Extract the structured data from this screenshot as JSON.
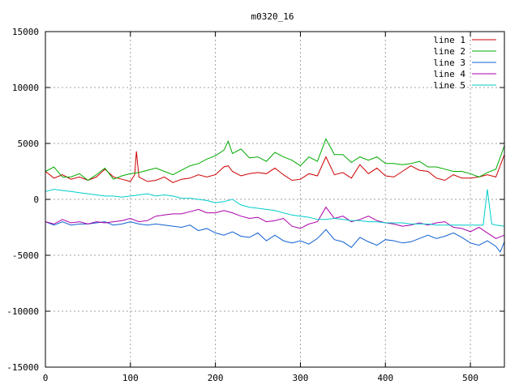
{
  "chart_data": {
    "type": "line",
    "title": "m0320_16",
    "xlabel": "",
    "ylabel": "",
    "xlim": [
      0,
      540
    ],
    "ylim": [
      -15000,
      15000
    ],
    "xticks": [
      0,
      100,
      200,
      300,
      400,
      500
    ],
    "yticks": [
      -15000,
      -10000,
      -5000,
      0,
      5000,
      10000,
      15000
    ],
    "grid": true,
    "legend_position": "top-right",
    "series": [
      {
        "name": "line 1",
        "color": "#cc0000",
        "x": [
          0,
          10,
          20,
          30,
          40,
          50,
          60,
          70,
          80,
          90,
          100,
          105,
          107,
          110,
          120,
          130,
          140,
          150,
          160,
          170,
          180,
          190,
          200,
          210,
          215,
          220,
          230,
          240,
          250,
          260,
          270,
          280,
          290,
          300,
          310,
          320,
          330,
          340,
          350,
          360,
          370,
          380,
          390,
          400,
          410,
          420,
          430,
          440,
          450,
          460,
          470,
          480,
          490,
          500,
          510,
          520,
          530,
          540
        ],
        "values": [
          2500,
          1900,
          2200,
          1800,
          2000,
          1700,
          2000,
          2700,
          2000,
          1800,
          1600,
          2200,
          4300,
          2000,
          1600,
          1700,
          2000,
          1500,
          1800,
          1900,
          2200,
          2000,
          2200,
          2900,
          3000,
          2500,
          2100,
          2300,
          2400,
          2300,
          2800,
          2200,
          1700,
          1800,
          2300,
          2100,
          3800,
          2200,
          2400,
          1900,
          3100,
          2300,
          2800,
          2100,
          2000,
          2500,
          3000,
          2600,
          2500,
          1900,
          1700,
          2200,
          1900,
          1900,
          2000,
          2200,
          2000,
          4000
        ]
      },
      {
        "name": "line 2",
        "color": "#00aa00",
        "x": [
          0,
          10,
          20,
          30,
          40,
          50,
          60,
          70,
          80,
          90,
          100,
          110,
          120,
          130,
          140,
          150,
          160,
          170,
          180,
          190,
          200,
          210,
          215,
          220,
          230,
          240,
          250,
          260,
          270,
          280,
          290,
          300,
          310,
          320,
          330,
          340,
          350,
          360,
          370,
          380,
          390,
          400,
          410,
          420,
          430,
          440,
          450,
          460,
          470,
          480,
          490,
          500,
          510,
          520,
          530,
          540
        ],
        "values": [
          2500,
          2900,
          2000,
          2000,
          2300,
          1700,
          2200,
          2800,
          1800,
          2100,
          2300,
          2400,
          2600,
          2800,
          2500,
          2200,
          2600,
          3000,
          3200,
          3600,
          3900,
          4400,
          5200,
          4100,
          4500,
          3700,
          3800,
          3400,
          4200,
          3800,
          3500,
          3000,
          3800,
          3400,
          5400,
          4000,
          4000,
          3300,
          3800,
          3500,
          3800,
          3200,
          3200,
          3100,
          3200,
          3400,
          2900,
          2900,
          2700,
          2500,
          2500,
          2300,
          2000,
          2400,
          2700,
          4800
        ]
      },
      {
        "name": "line 3",
        "color": "#1060d0",
        "x": [
          0,
          10,
          20,
          30,
          40,
          50,
          60,
          70,
          80,
          90,
          100,
          110,
          120,
          130,
          140,
          150,
          160,
          170,
          180,
          190,
          200,
          210,
          220,
          230,
          240,
          250,
          260,
          270,
          280,
          290,
          300,
          310,
          320,
          330,
          340,
          350,
          360,
          370,
          380,
          390,
          400,
          410,
          420,
          430,
          440,
          450,
          460,
          470,
          480,
          490,
          500,
          510,
          520,
          530,
          535,
          540
        ],
        "values": [
          -2000,
          -2300,
          -2000,
          -2300,
          -2200,
          -2200,
          -2100,
          -2000,
          -2300,
          -2200,
          -2000,
          -2200,
          -2300,
          -2200,
          -2300,
          -2400,
          -2500,
          -2300,
          -2800,
          -2600,
          -3000,
          -3200,
          -2900,
          -3300,
          -3400,
          -3000,
          -3700,
          -3200,
          -3700,
          -3900,
          -3700,
          -4000,
          -3500,
          -2700,
          -3600,
          -3800,
          -4300,
          -3400,
          -3800,
          -4100,
          -3600,
          -3700,
          -3900,
          -3800,
          -3500,
          -3200,
          -3500,
          -3300,
          -3000,
          -3400,
          -3900,
          -4100,
          -3700,
          -4200,
          -4700,
          -3800
        ]
      },
      {
        "name": "line 4",
        "color": "#aa00aa",
        "x": [
          0,
          10,
          20,
          30,
          40,
          50,
          60,
          70,
          80,
          90,
          100,
          110,
          120,
          130,
          140,
          150,
          160,
          170,
          180,
          190,
          200,
          210,
          220,
          230,
          240,
          250,
          260,
          270,
          280,
          290,
          300,
          310,
          320,
          330,
          340,
          350,
          360,
          370,
          380,
          390,
          400,
          410,
          420,
          430,
          440,
          450,
          460,
          470,
          480,
          490,
          500,
          510,
          520,
          530,
          540
        ],
        "values": [
          -2000,
          -2200,
          -1800,
          -2100,
          -2000,
          -2200,
          -2000,
          -2100,
          -2000,
          -1900,
          -1700,
          -2000,
          -1900,
          -1500,
          -1400,
          -1300,
          -1300,
          -1100,
          -900,
          -1200,
          -1200,
          -1000,
          -1200,
          -1500,
          -1700,
          -1600,
          -2000,
          -1900,
          -1700,
          -2400,
          -2600,
          -2200,
          -2000,
          -700,
          -1700,
          -1500,
          -2000,
          -1800,
          -1500,
          -1900,
          -2100,
          -2200,
          -2400,
          -2300,
          -2100,
          -2300,
          -2100,
          -2000,
          -2500,
          -2600,
          -2900,
          -2500,
          -3000,
          -3500,
          -3200
        ]
      },
      {
        "name": "line 5",
        "color": "#00cccc",
        "x": [
          0,
          10,
          20,
          30,
          40,
          50,
          60,
          70,
          80,
          90,
          100,
          110,
          120,
          130,
          140,
          150,
          160,
          170,
          180,
          190,
          200,
          210,
          220,
          230,
          240,
          250,
          260,
          270,
          280,
          290,
          300,
          310,
          320,
          330,
          340,
          350,
          360,
          370,
          380,
          390,
          400,
          410,
          420,
          430,
          440,
          450,
          460,
          470,
          480,
          490,
          500,
          510,
          515,
          520,
          525,
          530,
          540
        ],
        "values": [
          700,
          900,
          800,
          700,
          600,
          500,
          400,
          300,
          300,
          200,
          300,
          400,
          500,
          300,
          400,
          300,
          100,
          100,
          0,
          -100,
          -300,
          -200,
          0,
          -500,
          -700,
          -800,
          -900,
          -1000,
          -1200,
          -1400,
          -1500,
          -1600,
          -1800,
          -1800,
          -1700,
          -1800,
          -1900,
          -1900,
          -2000,
          -2000,
          -2100,
          -2100,
          -2100,
          -2200,
          -2200,
          -2200,
          -2300,
          -2300,
          -2300,
          -2300,
          -2300,
          -2300,
          -2300,
          900,
          -2200,
          -2300,
          -2400
        ]
      }
    ]
  }
}
